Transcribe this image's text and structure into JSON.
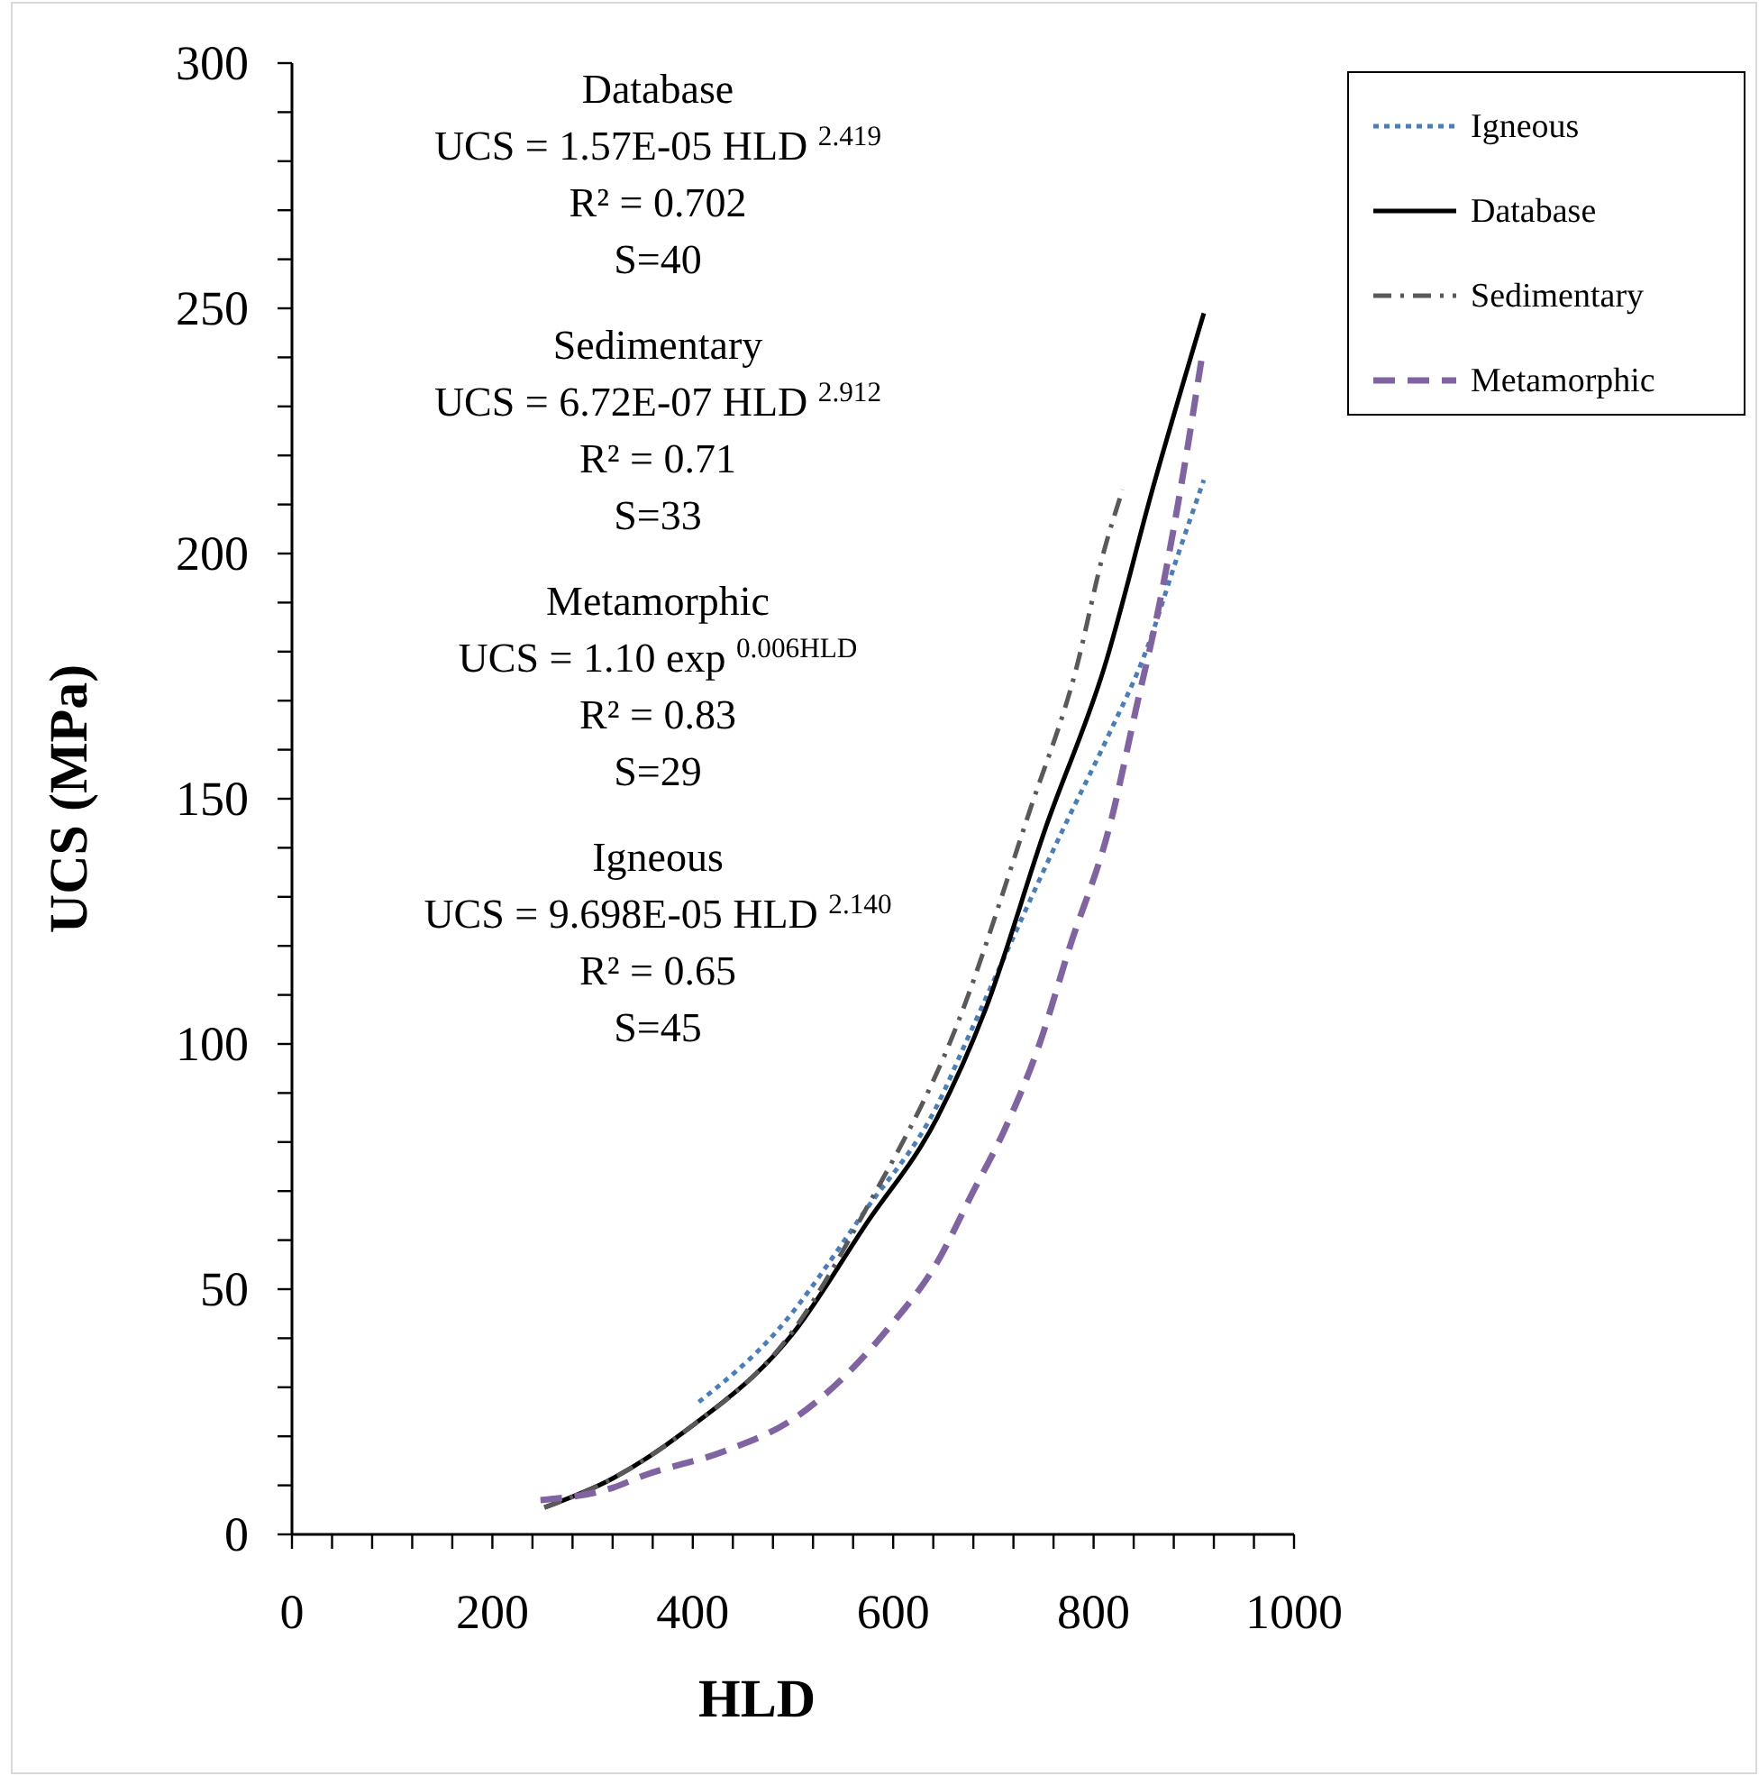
{
  "chart_data": {
    "type": "line",
    "xlabel": "HLD",
    "ylabel": "UCS (MPa)",
    "xlim": [
      0,
      1000
    ],
    "ylim": [
      0,
      300
    ],
    "xticks": [
      0,
      {
        "value": 40,
        "label": null
      },
      {
        "value": 80,
        "label": null
      },
      {
        "value": 120,
        "label": null
      },
      {
        "value": 160,
        "label": null
      },
      200,
      {
        "value": 240,
        "label": null
      },
      {
        "value": 280,
        "label": null
      },
      {
        "value": 320,
        "label": null
      },
      {
        "value": 360,
        "label": null
      },
      400,
      {
        "value": 440,
        "label": null
      },
      {
        "value": 480,
        "label": null
      },
      {
        "value": 520,
        "label": null
      },
      {
        "value": 560,
        "label": null
      },
      600,
      {
        "value": 640,
        "label": null
      },
      {
        "value": 680,
        "label": null
      },
      {
        "value": 720,
        "label": null
      },
      {
        "value": 760,
        "label": null
      },
      800,
      {
        "value": 840,
        "label": null
      },
      {
        "value": 880,
        "label": null
      },
      {
        "value": 920,
        "label": null
      },
      {
        "value": 960,
        "label": null
      },
      1000
    ],
    "yticks": [
      0,
      {
        "value": 10,
        "label": null
      },
      {
        "value": 20,
        "label": null
      },
      {
        "value": 30,
        "label": null
      },
      {
        "value": 40,
        "label": null
      },
      50,
      {
        "value": 60,
        "label": null
      },
      {
        "value": 70,
        "label": null
      },
      {
        "value": 80,
        "label": null
      },
      {
        "value": 90,
        "label": null
      },
      100,
      {
        "value": 110,
        "label": null
      },
      {
        "value": 120,
        "label": null
      },
      {
        "value": 130,
        "label": null
      },
      {
        "value": 140,
        "label": null
      },
      150,
      {
        "value": 160,
        "label": null
      },
      {
        "value": 170,
        "label": null
      },
      {
        "value": 180,
        "label": null
      },
      {
        "value": 190,
        "label": null
      },
      200,
      {
        "value": 210,
        "label": null
      },
      {
        "value": 220,
        "label": null
      },
      {
        "value": 230,
        "label": null
      },
      {
        "value": 240,
        "label": null
      },
      250,
      {
        "value": 260,
        "label": null
      },
      {
        "value": 270,
        "label": null
      },
      {
        "value": 280,
        "label": null
      },
      {
        "value": 290,
        "label": null
      },
      300
    ],
    "grid": false,
    "legend": "top right",
    "series": [
      {
        "name": "Igneous",
        "color": "#4a7ebb",
        "line_style": "dotted",
        "x": [
          406,
          482,
          572,
          644,
          674,
          770,
          815,
          853,
          883,
          910
        ],
        "values": [
          27,
          41,
          66,
          87.5,
          101,
          144,
          163,
          180.5,
          199,
          215
        ]
      },
      {
        "name": "Database",
        "color": "#000000",
        "line_style": "solid",
        "x": [
          252,
          320,
          392,
          500,
          572,
          644,
          692,
          752,
          811,
          860,
          910
        ],
        "values": [
          5.5,
          11.4,
          21,
          41,
          63,
          85,
          107,
          144,
          177,
          214,
          249
        ]
      },
      {
        "name": "Sedimentary",
        "color": "#595959",
        "line_style": "dashdot",
        "x": [
          252,
          320,
          392,
          500,
          572,
          662,
          737,
          782,
          811,
          829
        ],
        "values": [
          5.5,
          11.4,
          21,
          41.5,
          66,
          103,
          148,
          176,
          201,
          213
        ]
      },
      {
        "name": "Metamorphic",
        "color": "#8064a2",
        "line_style": "dashed",
        "x": [
          248,
          320,
          351,
          432,
          500,
          595,
          644,
          680,
          710,
          746,
          775,
          818,
          842,
          865,
          890,
          908
        ],
        "values": [
          7,
          9.5,
          12,
          17,
          23.5,
          42,
          55.5,
          70,
          82,
          100,
          119,
          146,
          168,
          189,
          217,
          240
        ]
      }
    ],
    "annotations": [
      "Database\nUCS = 1.57E-05 HLD $^{2.419}$\nR² = 0.702\nS=40",
      "Sedimentary\nUCS = 6.72E-07 HLD $^{2.912}$\nR² = 0.71\nS=33",
      "Metamorphic\nUCS = 1.10 exp $^{0.006HLD}$\nR² = 0.83\nS=29",
      "Igneous\nUCS = 9.698E-05 HLD $^{2.140}$\nR² = 0.65\nS=45"
    ]
  }
}
